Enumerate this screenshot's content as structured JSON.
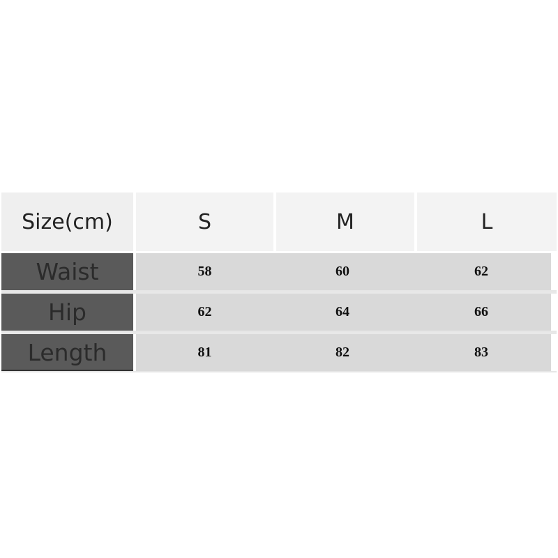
{
  "table": {
    "header": [
      "Size(cm)",
      "S",
      "M",
      "L"
    ],
    "rows": [
      {
        "label": "Waist",
        "values": [
          "58",
          "60",
          "62"
        ]
      },
      {
        "label": "Hip",
        "values": [
          "62",
          "64",
          "66"
        ]
      },
      {
        "label": "Length",
        "values": [
          "81",
          "82",
          "83"
        ]
      }
    ]
  },
  "colors": {
    "label_column": "#5a5a5a",
    "value_cells": "#d9d9d9",
    "header_cells": "#f3f3f3"
  }
}
